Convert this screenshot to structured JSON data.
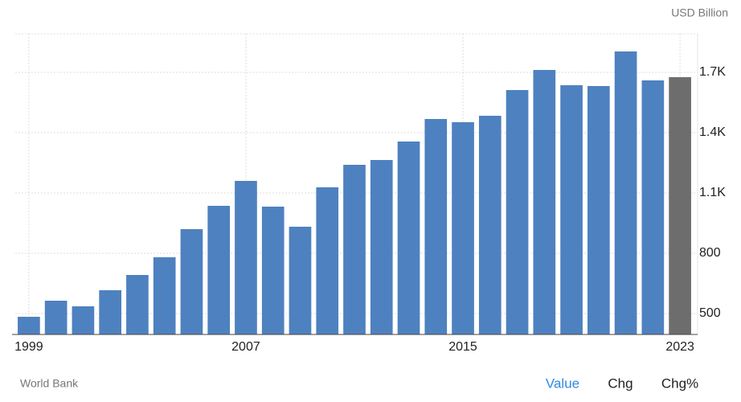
{
  "chart_data": {
    "type": "bar",
    "unit": "USD Billion",
    "source": "World Bank",
    "categories": [
      "1999",
      null,
      null,
      null,
      null,
      null,
      null,
      null,
      "2007",
      null,
      null,
      null,
      null,
      null,
      null,
      null,
      "2015",
      null,
      null,
      null,
      null,
      null,
      null,
      null,
      "2023"
    ],
    "values": [
      484,
      564,
      536,
      616,
      692,
      780,
      920,
      1036,
      1160,
      1032,
      932,
      1128,
      1240,
      1264,
      1356,
      1468,
      1452,
      1484,
      1612,
      1712,
      1636,
      1632,
      1804,
      1660,
      1676
    ],
    "colors": [
      "#4e81bf",
      "#4e81bf",
      "#4e81bf",
      "#4e81bf",
      "#4e81bf",
      "#4e81bf",
      "#4e81bf",
      "#4e81bf",
      "#4e81bf",
      "#4e81bf",
      "#4e81bf",
      "#4e81bf",
      "#4e81bf",
      "#4e81bf",
      "#4e81bf",
      "#4e81bf",
      "#4e81bf",
      "#4e81bf",
      "#4e81bf",
      "#4e81bf",
      "#4e81bf",
      "#4e81bf",
      "#4e81bf",
      "#4e81bf",
      "#6d6d6d"
    ],
    "ylim": [
      396,
      1892
    ],
    "yticks": [
      500,
      800,
      {
        "value": 1100,
        "label": "1.1K"
      },
      {
        "value": 1400,
        "label": "1.4K"
      },
      {
        "value": 1700,
        "label": "1.7K"
      }
    ],
    "grid": true
  },
  "tabs": [
    "Value",
    "Chg",
    "Chg%"
  ]
}
